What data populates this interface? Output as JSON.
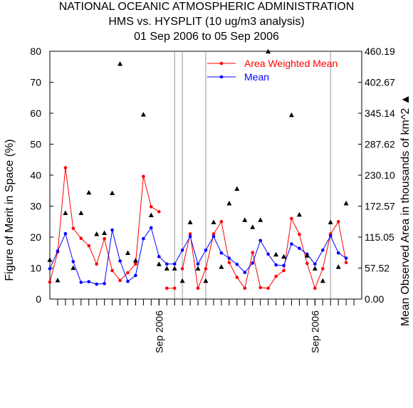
{
  "chart_data": {
    "type": "line",
    "title": [
      "NATIONAL OCEANIC ATMOSPHERIC ADMINISTRATION",
      "HMS vs. HYSPLIT (10 ug/m3 analysis)",
      "01 Sep 2006 to 05 Sep 2006"
    ],
    "ylabel": "Figure of Merit in Space (%)",
    "y2label": "Mean Observed Area in thousands of km^2",
    "y2label_marker": "▲",
    "ylim": [
      0,
      80
    ],
    "yticks": [
      "0",
      "10",
      "20",
      "30",
      "40",
      "50",
      "60",
      "70",
      "80"
    ],
    "y2lim": [
      0,
      460.19
    ],
    "y2ticks": [
      "0.00",
      "57.52",
      "115.05",
      "172.57",
      "230.10",
      "287.62",
      "345.14",
      "402.67",
      "460.19"
    ],
    "xlim": [
      0,
      40
    ],
    "xtick_labels": [
      {
        "x": 14,
        "label": "Sep 2006"
      },
      {
        "x": 34,
        "label": "Sep 2006"
      }
    ],
    "separators": [
      16,
      17,
      20,
      36
    ],
    "legend_position": "top-right",
    "series": [
      {
        "name": "Area Weighted Mean",
        "color": "#ff0000",
        "segments": [
          [
            [
              0,
              5.5
            ],
            [
              1,
              15.2
            ],
            [
              2,
              42.4
            ],
            [
              3,
              22.8
            ],
            [
              4,
              19.6
            ],
            [
              5,
              17.2
            ],
            [
              6,
              11.3
            ],
            [
              7,
              19.5
            ],
            [
              8,
              9.2
            ],
            [
              9,
              6
            ],
            [
              10,
              8.5
            ],
            [
              11,
              11.3
            ],
            [
              12,
              39.6
            ],
            [
              13,
              29.8
            ],
            [
              14,
              28.2
            ]
          ],
          [
            [
              15,
              3.5
            ],
            [
              16,
              3.5
            ]
          ],
          [
            [
              17,
              9.8
            ],
            [
              18,
              21
            ],
            [
              19,
              3.5
            ],
            [
              20,
              9.8
            ],
            [
              21,
              21
            ],
            [
              22,
              25
            ],
            [
              23,
              11.8
            ],
            [
              24,
              7
            ],
            [
              25,
              3.5
            ],
            [
              26,
              15
            ],
            [
              27,
              3.7
            ],
            [
              28,
              3.5
            ],
            [
              29,
              7.3
            ],
            [
              30,
              9.2
            ],
            [
              31,
              26
            ],
            [
              32,
              20.9
            ],
            [
              33,
              11.5
            ],
            [
              34,
              3.5
            ],
            [
              35,
              9.8
            ],
            [
              36,
              21
            ],
            [
              37,
              25
            ],
            [
              38,
              11.8
            ]
          ]
        ]
      },
      {
        "name": "Mean",
        "color": "#0000ff",
        "segments": [
          [
            [
              0,
              9.8
            ],
            [
              1,
              15.5
            ],
            [
              2,
              21.1
            ],
            [
              3,
              12.1
            ],
            [
              4,
              5.4
            ],
            [
              5,
              5.6
            ],
            [
              6,
              4.8
            ],
            [
              7,
              5
            ],
            [
              8,
              22.3
            ],
            [
              9,
              12.3
            ],
            [
              10,
              5.7
            ],
            [
              11,
              7.6
            ],
            [
              12,
              19.5
            ],
            [
              13,
              23
            ],
            [
              14,
              13.7
            ],
            [
              15,
              11.3
            ],
            [
              16,
              11.3
            ],
            [
              17,
              15.8
            ],
            [
              18,
              20.2
            ],
            [
              19,
              11.3
            ],
            [
              20,
              15.8
            ],
            [
              21,
              20.2
            ],
            [
              22,
              14.9
            ],
            [
              23,
              13.2
            ],
            [
              24,
              11.2
            ],
            [
              25,
              8.6
            ],
            [
              26,
              11.6
            ],
            [
              27,
              18.9
            ],
            [
              28,
              14.5
            ],
            [
              29,
              11
            ],
            [
              30,
              10.8
            ],
            [
              31,
              17.8
            ],
            [
              32,
              16.4
            ],
            [
              33,
              14.5
            ],
            [
              34,
              11.3
            ],
            [
              35,
              15.8
            ],
            [
              36,
              20.4
            ],
            [
              37,
              14.9
            ],
            [
              38,
              13.2
            ]
          ]
        ]
      }
    ],
    "observed_area": {
      "marker": "triangle",
      "color": "#000000",
      "points": [
        [
          0,
          73
        ],
        [
          1,
          35
        ],
        [
          2,
          160
        ],
        [
          3,
          58
        ],
        [
          4,
          160
        ],
        [
          5,
          198
        ],
        [
          6,
          121
        ],
        [
          7,
          123
        ],
        [
          8,
          197
        ],
        [
          9,
          437
        ],
        [
          10,
          86
        ],
        [
          11,
          72
        ],
        [
          12,
          343
        ],
        [
          13,
          156
        ],
        [
          14,
          65
        ],
        [
          15,
          57
        ],
        [
          16,
          57
        ],
        [
          17,
          34
        ],
        [
          18,
          143
        ],
        [
          19,
          57
        ],
        [
          20,
          34
        ],
        [
          21,
          143
        ],
        [
          22,
          60
        ],
        [
          23,
          178
        ],
        [
          24,
          205
        ],
        [
          25,
          147
        ],
        [
          26,
          134
        ],
        [
          27,
          147
        ],
        [
          28,
          460
        ],
        [
          29,
          83
        ],
        [
          30,
          79
        ],
        [
          31,
          342
        ],
        [
          32,
          157
        ],
        [
          33,
          81
        ],
        [
          34,
          57
        ],
        [
          35,
          34
        ],
        [
          36,
          143
        ],
        [
          37,
          60
        ],
        [
          38,
          178
        ]
      ]
    }
  }
}
